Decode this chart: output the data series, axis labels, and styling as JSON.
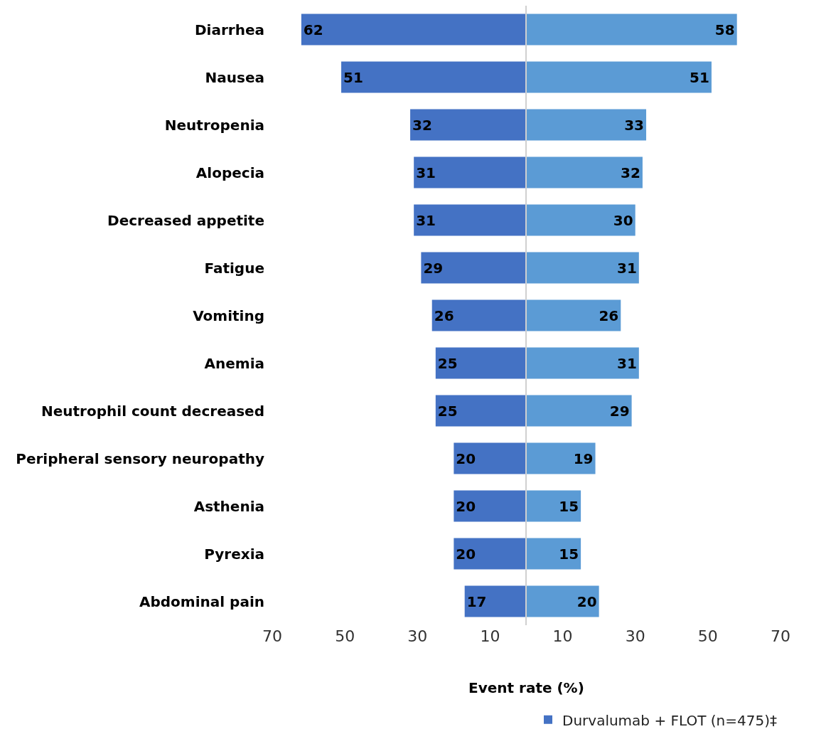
{
  "chart_data": [
    {
      "type": "bar",
      "orientation": "horizontal",
      "xlabel": "Event rate (%)",
      "categories": [
        "Diarrhea",
        "Nausea",
        "Neutropenia",
        "Alopecia",
        "Decreased appetite",
        "Fatigue",
        "Vomiting",
        "Anemia",
        "Neutrophil count decreased",
        "Peripheral sensory neuropathy",
        "Asthenia",
        "Pyrexia",
        "Abdominal pain"
      ],
      "series": [
        {
          "name": "Durvalumab + FLOT (n=475)‡",
          "color": "#4472c4",
          "values": [
            62,
            51,
            32,
            31,
            31,
            29,
            26,
            25,
            25,
            20,
            20,
            20,
            17
          ]
        }
      ],
      "data_labels": true,
      "xlim": [
        70,
        0
      ],
      "xticks": [
        70,
        50,
        30,
        10
      ],
      "legend": "bottom right"
    },
    {
      "type": "bar",
      "orientation": "horizontal",
      "categories": [
        "Diarrhea",
        "Nausea",
        "Neutropenia",
        "Alopecia",
        "Decreased appetite",
        "Fatigue",
        "Vomiting",
        "Anemia",
        "Neutrophil count decreased",
        "Peripheral sensory neuropathy",
        "Asthenia",
        "Pyrexia",
        "Abdominal pain"
      ],
      "series": [
        {
          "color": "#5b9bd5",
          "values": [
            58,
            51,
            33,
            32,
            30,
            31,
            26,
            31,
            29,
            19,
            15,
            15,
            20
          ]
        }
      ],
      "data_labels": true,
      "xlim": [
        0,
        70
      ],
      "xticks": [
        10,
        30,
        50,
        70
      ],
      "tick_labels": "x"
    }
  ]
}
